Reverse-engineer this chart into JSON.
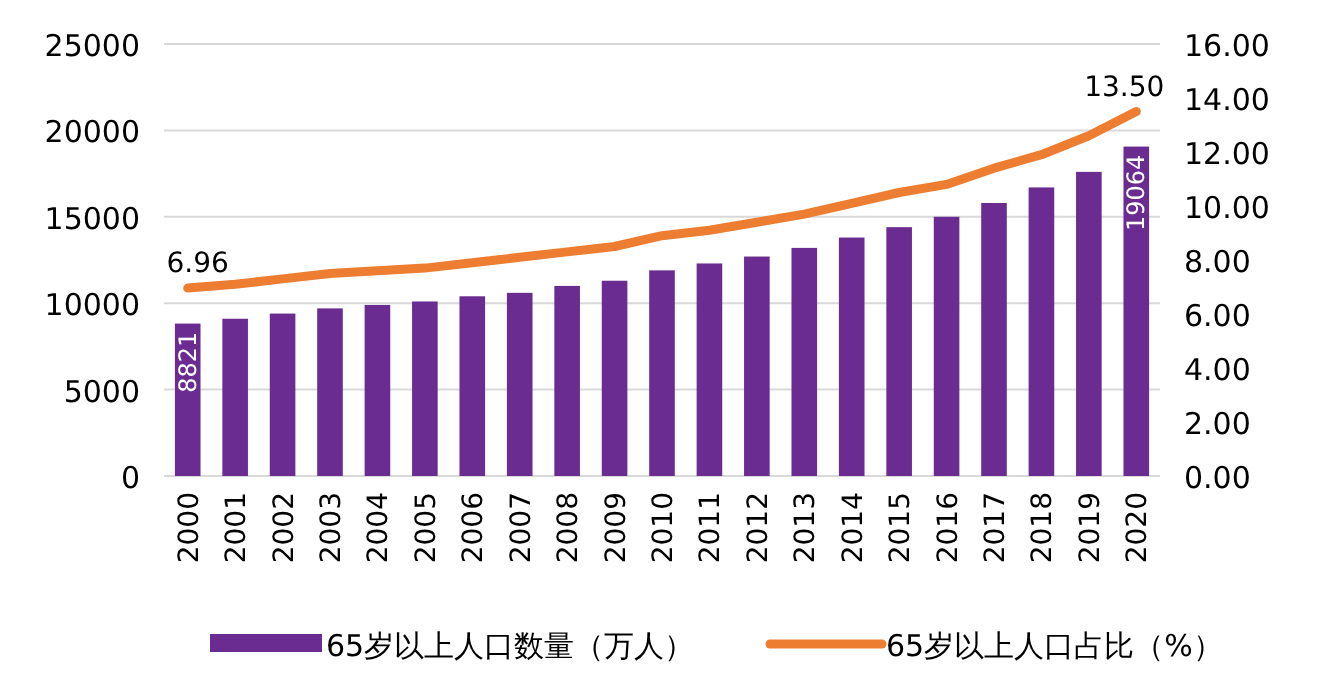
{
  "chart_data": {
    "type": "bar",
    "categories": [
      "2000",
      "2001",
      "2002",
      "2003",
      "2004",
      "2005",
      "2006",
      "2007",
      "2008",
      "2009",
      "2010",
      "2011",
      "2012",
      "2013",
      "2014",
      "2015",
      "2016",
      "2017",
      "2018",
      "2019",
      "2020"
    ],
    "series": [
      {
        "name": "65岁以上人口数量（万人）",
        "color": "#6a2c91",
        "values": [
          8821,
          9100,
          9400,
          9700,
          9900,
          10100,
          10400,
          10600,
          11000,
          11300,
          11900,
          12300,
          12700,
          13200,
          13800,
          14400,
          15000,
          15800,
          16700,
          17600,
          19064
        ],
        "value_labels": [
          "8821",
          null,
          null,
          null,
          null,
          null,
          null,
          null,
          null,
          null,
          null,
          null,
          null,
          null,
          null,
          null,
          null,
          null,
          null,
          null,
          "19064"
        ]
      },
      {
        "name": "65岁以上人口占比（%）",
        "type": "line",
        "axis": "y2",
        "color": "#ed7d31",
        "values": [
          6.96,
          7.1,
          7.3,
          7.5,
          7.6,
          7.7,
          7.9,
          8.1,
          8.3,
          8.5,
          8.9,
          9.1,
          9.4,
          9.7,
          10.1,
          10.5,
          10.8,
          11.4,
          11.9,
          12.6,
          13.5
        ],
        "value_labels": [
          "6.96",
          null,
          null,
          null,
          null,
          null,
          null,
          null,
          null,
          null,
          null,
          null,
          null,
          null,
          null,
          null,
          null,
          null,
          null,
          null,
          "13.50"
        ]
      }
    ],
    "ylim": [
      0,
      25000
    ],
    "yticks": [
      0,
      5000,
      10000,
      15000,
      20000,
      25000
    ],
    "y2lim": [
      0,
      16
    ],
    "y2ticks": [
      {
        "value": 0,
        "label": "0.00"
      },
      {
        "value": 2,
        "label": "2.00"
      },
      {
        "value": 4,
        "label": "4.00"
      },
      {
        "value": 6,
        "label": "6.00"
      },
      {
        "value": 8,
        "label": "8.00"
      },
      {
        "value": 10,
        "label": "10.00"
      },
      {
        "value": 12,
        "label": "12.00"
      },
      {
        "value": 14,
        "label": "14.00"
      },
      {
        "value": 16,
        "label": "16.00"
      }
    ],
    "grid": "y",
    "legend": "bottom"
  }
}
